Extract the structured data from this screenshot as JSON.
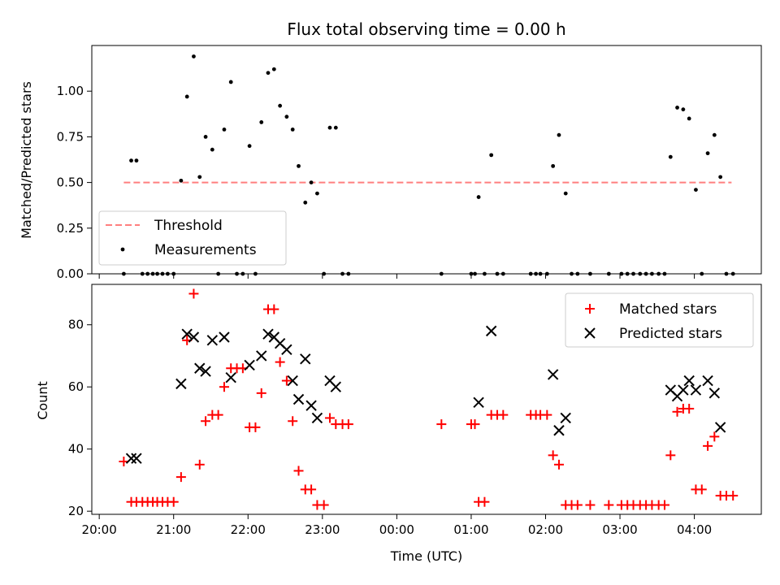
{
  "chart_data": [
    {
      "type": "scatter",
      "title": "Flux total observing time = 0.00 h",
      "xlabel": "",
      "ylabel": "Matched/Predicted stars",
      "x_unit": "time UTC (hours after 20:00)",
      "xlim": [
        -0.1,
        8.9
      ],
      "ylim": [
        0,
        1.25
      ],
      "yticks": [
        0.0,
        0.25,
        0.5,
        0.75,
        1.0
      ],
      "ytick_labels": [
        "0.00",
        "0.25",
        "0.50",
        "0.75",
        "1.00"
      ],
      "xtick_positions": [
        0,
        1,
        2,
        3,
        4,
        5,
        6,
        7,
        8
      ],
      "legend": {
        "placement": "lower-left",
        "entries": [
          "Threshold",
          "Measurements"
        ]
      },
      "threshold": {
        "name": "Threshold",
        "value": 0.5,
        "x_start": 0.33,
        "x_end": 8.5,
        "color": "#ff7f7f",
        "style": "dashed"
      },
      "series": [
        {
          "name": "Measurements",
          "color": "#000000",
          "marker": "dot",
          "points": [
            [
              0.33,
              0.0
            ],
            [
              0.43,
              0.62
            ],
            [
              0.5,
              0.62
            ],
            [
              0.58,
              0.0
            ],
            [
              0.65,
              0.0
            ],
            [
              0.72,
              0.0
            ],
            [
              0.78,
              0.0
            ],
            [
              0.85,
              0.0
            ],
            [
              0.92,
              0.0
            ],
            [
              1.0,
              0.0
            ],
            [
              1.1,
              0.51
            ],
            [
              1.18,
              0.97
            ],
            [
              1.27,
              1.19
            ],
            [
              1.35,
              0.53
            ],
            [
              1.43,
              0.75
            ],
            [
              1.52,
              0.68
            ],
            [
              1.6,
              0.0
            ],
            [
              1.68,
              0.79
            ],
            [
              1.77,
              1.05
            ],
            [
              1.85,
              0.0
            ],
            [
              1.93,
              0.0
            ],
            [
              2.02,
              0.7
            ],
            [
              2.1,
              0.0
            ],
            [
              2.18,
              0.83
            ],
            [
              2.27,
              1.1
            ],
            [
              2.35,
              1.12
            ],
            [
              2.43,
              0.92
            ],
            [
              2.52,
              0.86
            ],
            [
              2.6,
              0.79
            ],
            [
              2.68,
              0.59
            ],
            [
              2.77,
              0.39
            ],
            [
              2.85,
              0.5
            ],
            [
              2.93,
              0.44
            ],
            [
              3.02,
              0.0
            ],
            [
              3.1,
              0.8
            ],
            [
              3.18,
              0.8
            ],
            [
              3.27,
              0.0
            ],
            [
              3.35,
              0.0
            ],
            [
              4.6,
              0.0
            ],
            [
              5.0,
              0.0
            ],
            [
              5.05,
              0.0
            ],
            [
              5.1,
              0.42
            ],
            [
              5.18,
              0.0
            ],
            [
              5.27,
              0.65
            ],
            [
              5.35,
              0.0
            ],
            [
              5.43,
              0.0
            ],
            [
              5.8,
              0.0
            ],
            [
              5.87,
              0.0
            ],
            [
              5.93,
              0.0
            ],
            [
              6.02,
              0.0
            ],
            [
              6.1,
              0.59
            ],
            [
              6.18,
              0.76
            ],
            [
              6.27,
              0.44
            ],
            [
              6.35,
              0.0
            ],
            [
              6.43,
              0.0
            ],
            [
              6.6,
              0.0
            ],
            [
              6.85,
              0.0
            ],
            [
              7.02,
              0.0
            ],
            [
              7.1,
              0.0
            ],
            [
              7.18,
              0.0
            ],
            [
              7.27,
              0.0
            ],
            [
              7.35,
              0.0
            ],
            [
              7.43,
              0.0
            ],
            [
              7.52,
              0.0
            ],
            [
              7.6,
              0.0
            ],
            [
              7.68,
              0.64
            ],
            [
              7.77,
              0.91
            ],
            [
              7.85,
              0.9
            ],
            [
              7.93,
              0.85
            ],
            [
              8.02,
              0.46
            ],
            [
              8.1,
              0.0
            ],
            [
              8.18,
              0.66
            ],
            [
              8.27,
              0.76
            ],
            [
              8.35,
              0.53
            ],
            [
              8.43,
              0.0
            ],
            [
              8.52,
              0.0
            ]
          ]
        }
      ]
    },
    {
      "type": "scatter",
      "title": "",
      "xlabel": "Time (UTC)",
      "ylabel": "Count",
      "x_unit": "time UTC (hours after 20:00)",
      "xlim": [
        -0.1,
        8.9
      ],
      "ylim": [
        19,
        93
      ],
      "yticks": [
        20,
        40,
        60,
        80
      ],
      "ytick_labels": [
        "20",
        "40",
        "60",
        "80"
      ],
      "xtick_positions": [
        0,
        1,
        2,
        3,
        4,
        5,
        6,
        7,
        8
      ],
      "xtick_labels": [
        "20:00",
        "21:00",
        "22:00",
        "23:00",
        "00:00",
        "01:00",
        "02:00",
        "03:00",
        "04:00"
      ],
      "legend": {
        "placement": "upper-right",
        "entries": [
          "Matched stars",
          "Predicted stars"
        ]
      },
      "series": [
        {
          "name": "Matched stars",
          "color": "#ff0000",
          "marker": "plus",
          "points": [
            [
              0.33,
              36
            ],
            [
              0.43,
              23
            ],
            [
              0.5,
              23
            ],
            [
              0.58,
              23
            ],
            [
              0.65,
              23
            ],
            [
              0.72,
              23
            ],
            [
              0.78,
              23
            ],
            [
              0.85,
              23
            ],
            [
              0.92,
              23
            ],
            [
              1.0,
              23
            ],
            [
              1.1,
              31
            ],
            [
              1.18,
              75
            ],
            [
              1.27,
              90
            ],
            [
              1.35,
              35
            ],
            [
              1.43,
              49
            ],
            [
              1.52,
              51
            ],
            [
              1.6,
              51
            ],
            [
              1.68,
              60
            ],
            [
              1.77,
              66
            ],
            [
              1.85,
              66
            ],
            [
              1.93,
              66
            ],
            [
              2.02,
              47
            ],
            [
              2.1,
              47
            ],
            [
              2.18,
              58
            ],
            [
              2.27,
              85
            ],
            [
              2.35,
              85
            ],
            [
              2.43,
              68
            ],
            [
              2.52,
              62
            ],
            [
              2.6,
              49
            ],
            [
              2.68,
              33
            ],
            [
              2.77,
              27
            ],
            [
              2.85,
              27
            ],
            [
              2.93,
              22
            ],
            [
              3.02,
              22
            ],
            [
              3.1,
              50
            ],
            [
              3.18,
              48
            ],
            [
              3.27,
              48
            ],
            [
              3.35,
              48
            ],
            [
              4.6,
              48
            ],
            [
              5.0,
              48
            ],
            [
              5.05,
              48
            ],
            [
              5.1,
              23
            ],
            [
              5.18,
              23
            ],
            [
              5.27,
              51
            ],
            [
              5.35,
              51
            ],
            [
              5.43,
              51
            ],
            [
              5.8,
              51
            ],
            [
              5.87,
              51
            ],
            [
              5.93,
              51
            ],
            [
              6.02,
              51
            ],
            [
              6.1,
              38
            ],
            [
              6.18,
              35
            ],
            [
              6.27,
              22
            ],
            [
              6.35,
              22
            ],
            [
              6.43,
              22
            ],
            [
              6.6,
              22
            ],
            [
              6.85,
              22
            ],
            [
              7.02,
              22
            ],
            [
              7.1,
              22
            ],
            [
              7.18,
              22
            ],
            [
              7.27,
              22
            ],
            [
              7.35,
              22
            ],
            [
              7.43,
              22
            ],
            [
              7.52,
              22
            ],
            [
              7.6,
              22
            ],
            [
              7.68,
              38
            ],
            [
              7.77,
              52
            ],
            [
              7.85,
              53
            ],
            [
              7.93,
              53
            ],
            [
              8.02,
              27
            ],
            [
              8.1,
              27
            ],
            [
              8.18,
              41
            ],
            [
              8.27,
              44
            ],
            [
              8.35,
              25
            ],
            [
              8.43,
              25
            ],
            [
              8.52,
              25
            ]
          ]
        },
        {
          "name": "Predicted stars",
          "color": "#000000",
          "marker": "x",
          "points": [
            [
              0.43,
              37
            ],
            [
              0.5,
              37
            ],
            [
              1.1,
              61
            ],
            [
              1.18,
              77
            ],
            [
              1.27,
              76
            ],
            [
              1.35,
              66
            ],
            [
              1.43,
              65
            ],
            [
              1.52,
              75
            ],
            [
              1.68,
              76
            ],
            [
              1.77,
              63
            ],
            [
              2.02,
              67
            ],
            [
              2.18,
              70
            ],
            [
              2.27,
              77
            ],
            [
              2.35,
              76
            ],
            [
              2.43,
              74
            ],
            [
              2.52,
              72
            ],
            [
              2.6,
              62
            ],
            [
              2.68,
              56
            ],
            [
              2.77,
              69
            ],
            [
              2.85,
              54
            ],
            [
              2.93,
              50
            ],
            [
              3.1,
              62
            ],
            [
              3.18,
              60
            ],
            [
              5.1,
              55
            ],
            [
              5.27,
              78
            ],
            [
              6.1,
              64
            ],
            [
              6.18,
              46
            ],
            [
              6.27,
              50
            ],
            [
              7.68,
              59
            ],
            [
              7.77,
              57
            ],
            [
              7.85,
              59
            ],
            [
              7.93,
              62
            ],
            [
              8.02,
              59
            ],
            [
              8.18,
              62
            ],
            [
              8.27,
              58
            ],
            [
              8.35,
              47
            ]
          ]
        }
      ]
    }
  ]
}
